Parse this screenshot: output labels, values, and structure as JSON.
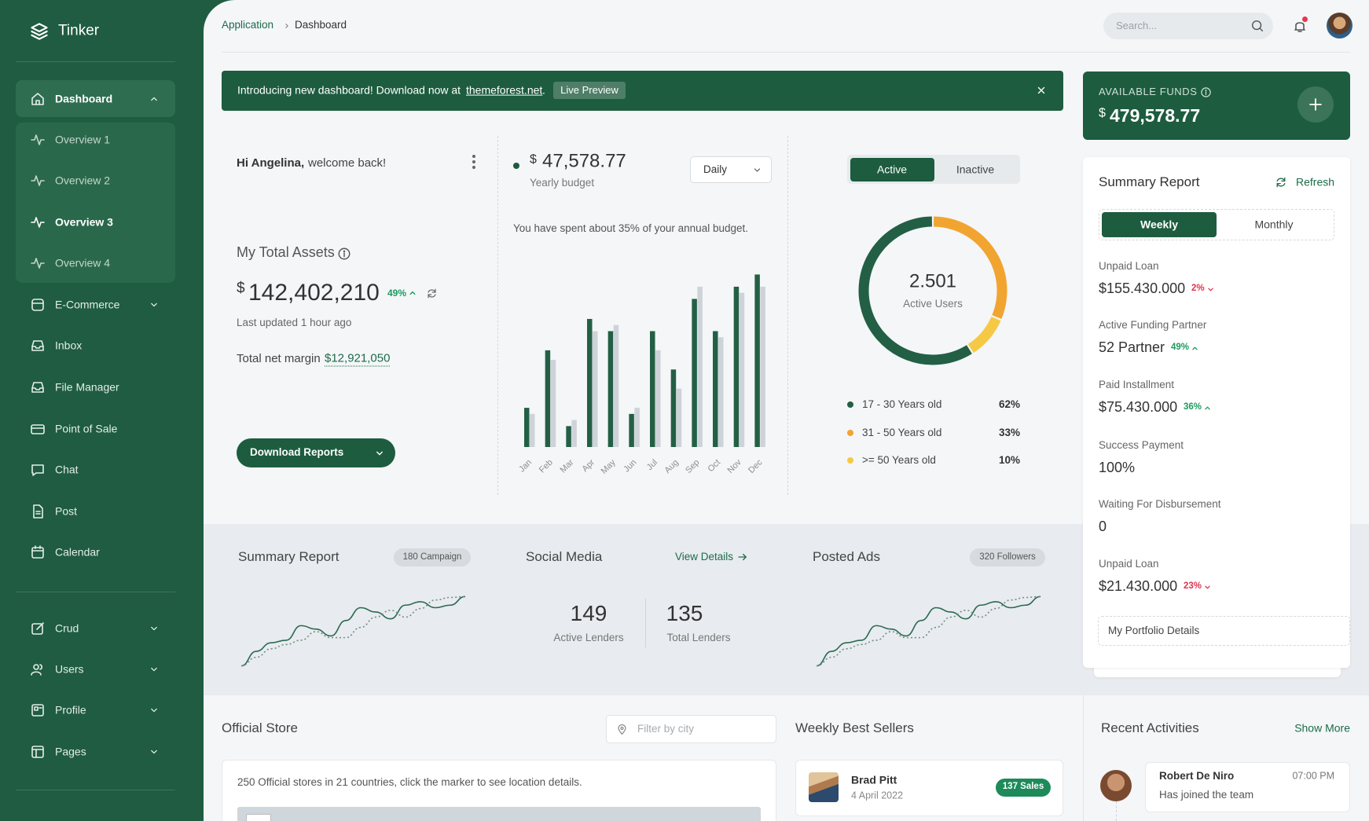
{
  "sidebar": {
    "brand": "Tinker",
    "menu": [
      "Dashboard",
      "E-Commerce",
      "Inbox",
      "File Manager",
      "Point of Sale",
      "Chat",
      "Post",
      "Calendar"
    ],
    "submenu": [
      "Overview 1",
      "Overview 2",
      "Overview 3",
      "Overview 4"
    ],
    "menu_secondary": [
      "Crud",
      "Users",
      "Profile",
      "Pages"
    ]
  },
  "header": {
    "breadcrumb": [
      "Application",
      "Dashboard"
    ],
    "search_placeholder": "Search..."
  },
  "banner": {
    "text": "Introducing new dashboard! Download now at",
    "link": "themeforest.net",
    "end": ".",
    "button": "Live Preview"
  },
  "funds": {
    "label": "AVAILABLE FUNDS",
    "currency": "$",
    "value": "479,578.77"
  },
  "welcome": {
    "name": "Hi Angelina,",
    "message": "welcome back!",
    "assets_title": "My Total Assets",
    "currency": "$",
    "assets_value": "142,402,210",
    "assets_change": "49%",
    "updated": "Last updated 1 hour ago",
    "margin_label": "Total net margin",
    "margin_value": "$12,921,050",
    "button": "Download Reports"
  },
  "budget": {
    "currency": "$",
    "amount": "47,578.77",
    "label": "Yearly budget",
    "period": "Daily",
    "note": "You have spent about 35% of your annual budget.",
    "chart": {
      "type": "bar",
      "categories": [
        "Jan",
        "Feb",
        "Mar",
        "Apr",
        "May",
        "Jun",
        "Jul",
        "Aug",
        "Sep",
        "Oct",
        "Nov",
        "Dec"
      ],
      "series": [
        {
          "color": "#235f45",
          "values": [
            45,
            111,
            24,
            147,
            133,
            38,
            133,
            89,
            170,
            133,
            184,
            198
          ]
        },
        {
          "color": "#cdd3d8",
          "values": [
            38,
            100,
            31,
            133,
            140,
            45,
            111,
            67,
            184,
            126,
            177,
            184
          ]
        }
      ],
      "ylim": [
        0,
        220
      ]
    }
  },
  "users": {
    "tabs": [
      "Active",
      "Inactive"
    ],
    "chart": {
      "type": "pie",
      "center_value": "2.501",
      "center_label": "Active Users",
      "categories": [
        "17 - 30 Years old",
        "31 - 50 Years old",
        ">= 50 Years old"
      ],
      "values": [
        62,
        33,
        10
      ],
      "value_labels": [
        "62%",
        "33%",
        "10%"
      ],
      "colors": [
        "#235f45",
        "#f2a430",
        "#f6c944"
      ]
    }
  },
  "summary_band": {
    "summary": {
      "title": "Summary Report",
      "badge": "180 Campaign",
      "chart": {
        "type": "line",
        "ylim": [
          0,
          90
        ],
        "series": [
          {
            "color": "#2a6a4e",
            "dash": false,
            "values": [
              5,
              22,
              32,
              35,
              52,
              48,
              40,
              58,
              73,
              68,
              60,
              76,
              80,
              73,
              76,
              86
            ]
          },
          {
            "color": "#6f8f80",
            "dash": true,
            "values": [
              5,
              15,
              25,
              30,
              35,
              45,
              38,
              38,
              50,
              62,
              70,
              62,
              72,
              82,
              85,
              86
            ]
          }
        ]
      }
    },
    "social": {
      "title": "Social Media",
      "link": "View Details",
      "stats": [
        {
          "value": 149,
          "label": "Active Lenders"
        },
        {
          "value": 135,
          "label": "Total Lenders"
        }
      ]
    },
    "ads": {
      "title": "Posted Ads",
      "badge": "320 Followers",
      "chart": {
        "type": "line",
        "ylim": [
          0,
          90
        ],
        "series": [
          {
            "color": "#2a6a4e",
            "dash": false,
            "values": [
              5,
              22,
              32,
              35,
              52,
              48,
              40,
              58,
              73,
              68,
              60,
              76,
              80,
              73,
              76,
              86
            ]
          },
          {
            "color": "#6f8f80",
            "dash": true,
            "values": [
              5,
              15,
              25,
              30,
              35,
              45,
              38,
              38,
              50,
              62,
              70,
              62,
              72,
              82,
              85,
              86
            ]
          }
        ]
      }
    }
  },
  "summary_report": {
    "title": "Summary Report",
    "refresh": "Refresh",
    "tabs": [
      "Weekly",
      "Monthly"
    ],
    "items": [
      {
        "label": "Unpaid Loan",
        "value": "$155.430.000",
        "change": "2%",
        "trend": "down"
      },
      {
        "label": "Active Funding Partner",
        "value": "52 Partner",
        "change": "49%",
        "trend": "up"
      },
      {
        "label": "Paid Installment",
        "value": "$75.430.000",
        "change": "36%",
        "trend": "up"
      },
      {
        "label": "Success Payment",
        "value": "100%"
      },
      {
        "label": "Waiting For Disbursement",
        "value": "0"
      },
      {
        "label": "Unpaid Loan",
        "value": "$21.430.000",
        "change": "23%",
        "trend": "down"
      }
    ],
    "portfolio": "My Portfolio Details"
  },
  "store": {
    "title": "Official Store",
    "filter_placeholder": "Filter by city",
    "description": "250 Official stores in 21 countries, click the marker to see location details."
  },
  "best_sellers": {
    "title": "Weekly Best Sellers",
    "items": [
      {
        "name": "Brad Pitt",
        "date": "4 April 2022",
        "badge": "137 Sales"
      }
    ]
  },
  "activities": {
    "title": "Recent Activities",
    "more": "Show More",
    "items": [
      {
        "name": "Robert De Niro",
        "time": "07:00 PM",
        "text": "Has joined the team"
      }
    ]
  }
}
